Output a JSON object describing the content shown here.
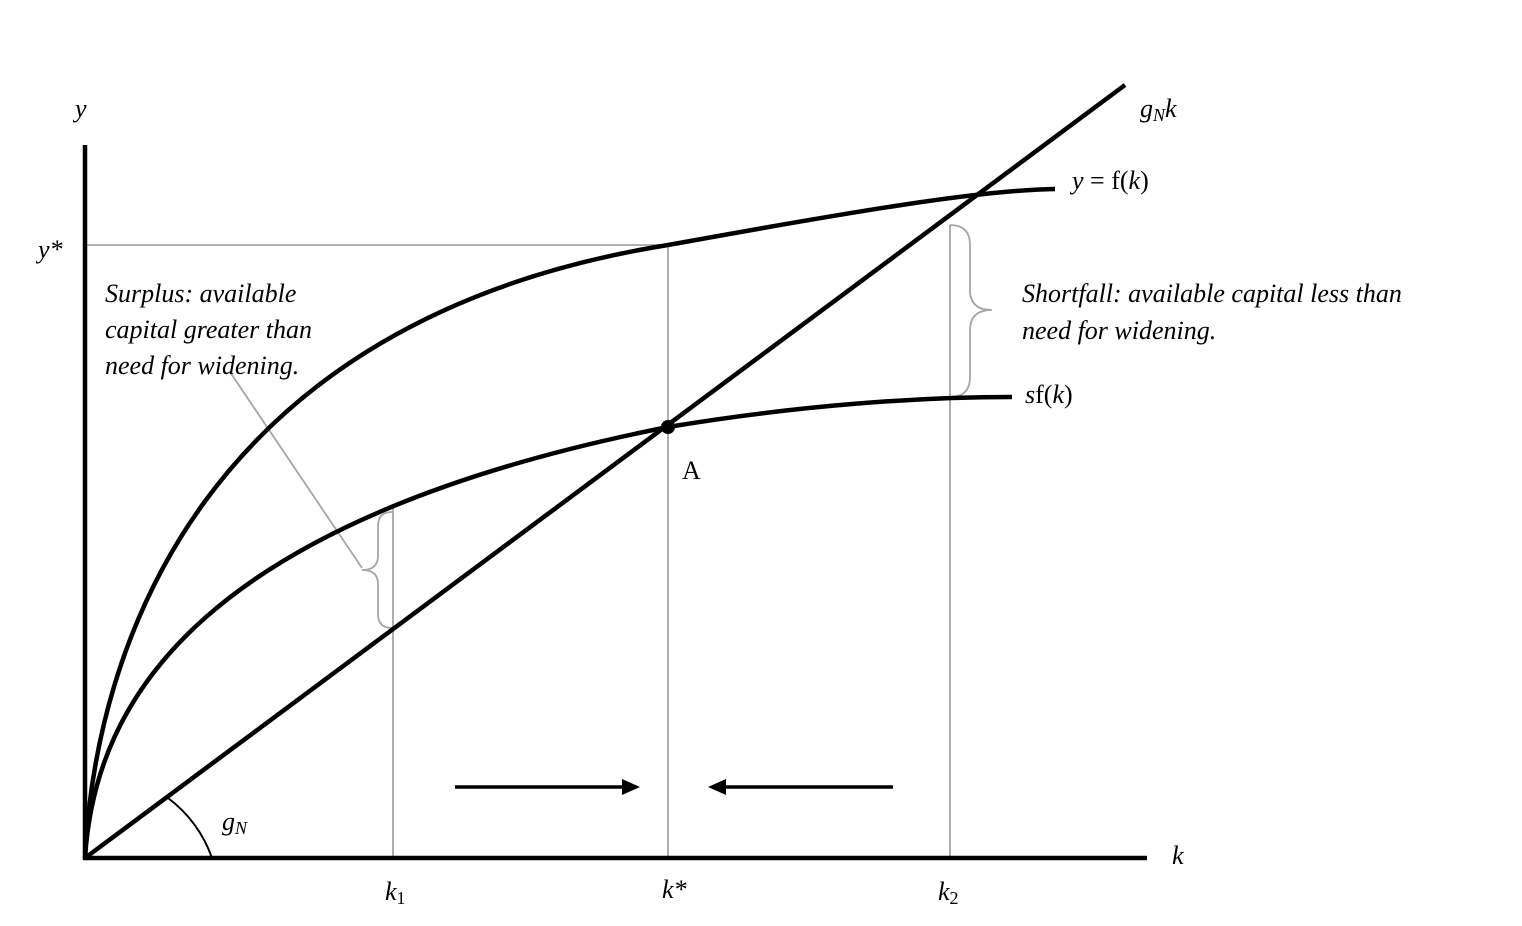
{
  "axes": {
    "y": "y",
    "x": "k",
    "y_star": "y*"
  },
  "line_label": {
    "base": "g",
    "sub": "N",
    "tail": "k"
  },
  "f_label": [
    "y",
    " = f(",
    "k",
    ")"
  ],
  "sf_label": [
    "s",
    "f(",
    "k",
    ")"
  ],
  "point": "A",
  "k1": {
    "base": "k",
    "sub": "1"
  },
  "k_star": "k*",
  "k2": {
    "base": "k",
    "sub": "2"
  },
  "angle": {
    "base": "g",
    "sub": "N"
  },
  "surplus": [
    "Surplus:  available",
    "capital greater than",
    "need for widening."
  ],
  "shortfall": [
    "Shortfall:  available capital less than",
    "need for widening."
  ]
}
